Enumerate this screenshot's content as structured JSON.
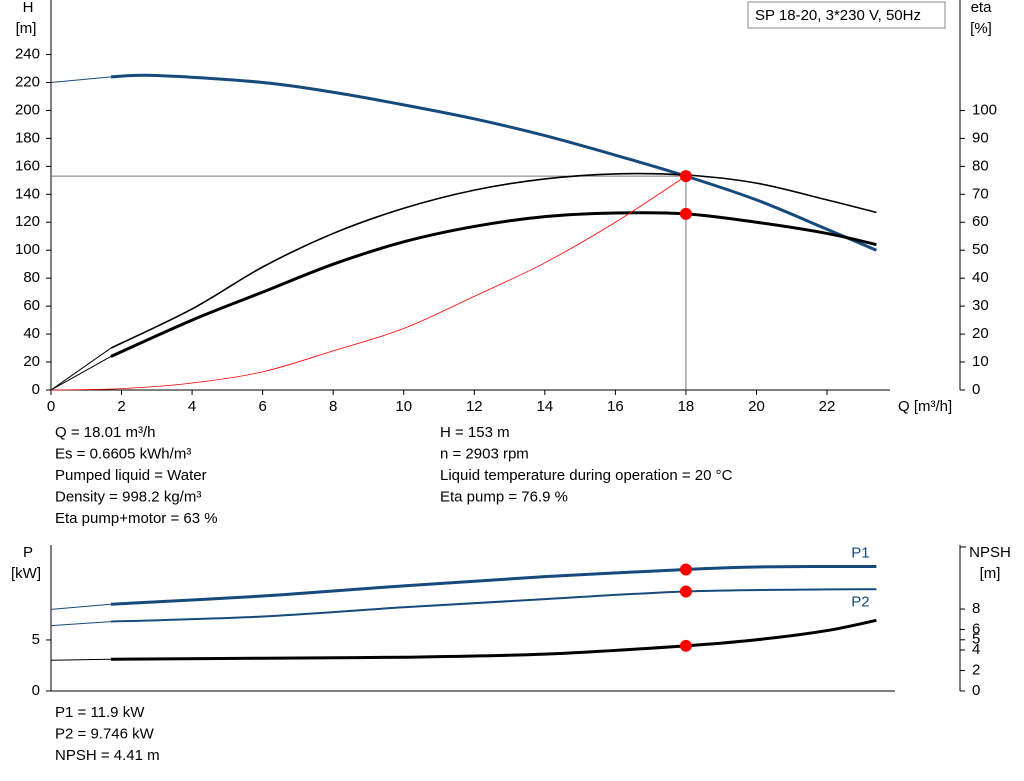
{
  "chart_data": [
    {
      "type": "line",
      "box_label": "SP 18-20, 3*230 V, 50Hz",
      "ylabel": "H",
      "yunit": "[m]",
      "y2label": "eta",
      "y2unit": "[%]",
      "xlabel": "Q [m³/h]",
      "xlim": [
        0,
        25.77
      ],
      "xticks": [
        0,
        2,
        4,
        6,
        8,
        10,
        12,
        14,
        16,
        18,
        20,
        22
      ],
      "ylim": [
        0,
        279
      ],
      "yticks": [
        0,
        20,
        40,
        60,
        80,
        100,
        120,
        140,
        160,
        180,
        200,
        220,
        240
      ],
      "y2lim": [
        0,
        139.5
      ],
      "y2ticks": [
        0,
        10,
        20,
        30,
        40,
        50,
        60,
        70,
        80,
        90,
        100
      ],
      "series": [
        {
          "color": "#174a7c",
          "width": 1,
          "x": [
            0,
            1.7
          ],
          "values": [
            220,
            224
          ]
        },
        {
          "color": "#174a7c",
          "width": 3,
          "x": [
            1.7,
            3,
            6,
            8,
            10,
            12,
            14,
            16,
            18,
            20,
            22,
            23.4
          ],
          "values": [
            224,
            225,
            220,
            213,
            204,
            194,
            182,
            168,
            153,
            136,
            115,
            100
          ]
        },
        {
          "color": "#000000",
          "width": 1,
          "axis": "y2",
          "x": [
            0,
            1.7
          ],
          "values": [
            0,
            15
          ]
        },
        {
          "color": "#000000",
          "width": 1.6,
          "axis": "y2",
          "x": [
            1.7,
            4,
            6,
            8,
            10,
            12,
            14,
            16,
            18,
            20,
            22,
            23.4
          ],
          "values": [
            15,
            29,
            44,
            56,
            65,
            71.5,
            75.5,
            77.3,
            76.9,
            74,
            68,
            63.5
          ]
        },
        {
          "color": "#000000",
          "width": 1,
          "axis": "y2",
          "x": [
            0,
            1.7
          ],
          "values": [
            0,
            12
          ]
        },
        {
          "color": "#000000",
          "width": 3,
          "axis": "y2",
          "x": [
            1.7,
            4,
            6,
            8,
            10,
            12,
            14,
            16,
            18,
            20,
            22,
            23.4
          ],
          "values": [
            12,
            25,
            35,
            45,
            53,
            58.5,
            62,
            63.3,
            63,
            60,
            56,
            52
          ]
        },
        {
          "color": "#ff0000",
          "width": 0.8,
          "x": [
            0,
            2,
            4,
            6,
            8,
            10,
            12,
            14,
            16,
            18
          ],
          "values": [
            0,
            1,
            5,
            13,
            28,
            44,
            67,
            91,
            120,
            153
          ]
        }
      ],
      "ref": {
        "x": 18,
        "y": 153
      },
      "points": [
        {
          "x": 18,
          "y": 153,
          "color": "#ff0000"
        },
        {
          "x": 18,
          "y": 126,
          "color": "#ff0000"
        }
      ],
      "info_left": [
        "Q = 18.01 m³/h",
        "Es = 0.6605 kWh/m³",
        "Pumped liquid = Water",
        "Density = 998.2 kg/m³",
        "Eta pump+motor = 63 %"
      ],
      "info_right": [
        "H = 153 m",
        "n = 2903 rpm",
        "Liquid temperature during operation = 20 °C",
        "Eta pump = 76.9 %"
      ]
    },
    {
      "type": "line",
      "ylabel": "P",
      "yunit": "[kW]",
      "y2label": "NPSH",
      "y2unit": "[m]",
      "xlim": [
        0,
        25.77
      ],
      "ylim": [
        0,
        14.3
      ],
      "yticks": [
        0,
        5
      ],
      "y2lim": [
        0,
        14.25
      ],
      "y2ticks": [
        0,
        2,
        4,
        5,
        6,
        8
      ],
      "series": [
        {
          "color": "#174a7c",
          "width": 1,
          "x": [
            0,
            1.7
          ],
          "values": [
            8.0,
            8.5
          ]
        },
        {
          "name": "P1",
          "color": "#174a7c",
          "width": 3,
          "x": [
            1.7,
            6,
            10,
            14,
            18,
            20,
            23.4
          ],
          "values": [
            8.5,
            9.3,
            10.3,
            11.2,
            11.9,
            12.15,
            12.2
          ]
        },
        {
          "color": "#174a7c",
          "width": 1,
          "x": [
            0,
            1.7
          ],
          "values": [
            6.4,
            6.8
          ]
        },
        {
          "name": "P2",
          "color": "#174a7c",
          "width": 2,
          "x": [
            1.7,
            6,
            10,
            14,
            18,
            22,
            23.4
          ],
          "values": [
            6.8,
            7.3,
            8.2,
            9.0,
            9.746,
            9.95,
            9.96
          ]
        },
        {
          "color": "#000000",
          "width": 1,
          "axis": "y2",
          "x": [
            0,
            1.7
          ],
          "values": [
            3.0,
            3.1
          ]
        },
        {
          "color": "#000000",
          "width": 3,
          "axis": "y2",
          "x": [
            1.7,
            6,
            10,
            14,
            18,
            20,
            22,
            23.4
          ],
          "values": [
            3.1,
            3.2,
            3.3,
            3.6,
            4.41,
            5.0,
            5.9,
            6.9
          ]
        }
      ],
      "points": [
        {
          "x": 18,
          "y": 11.9,
          "color": "#ff0000"
        },
        {
          "x": 18,
          "y": 9.746,
          "color": "#ff0000"
        },
        {
          "x": 18,
          "y": 4.41,
          "axis": "y2",
          "color": "#ff0000"
        }
      ],
      "info_left": [
        "P1 = 11.9 kW",
        "P2 = 9.746 kW",
        "NPSH = 4.41 m"
      ]
    }
  ]
}
